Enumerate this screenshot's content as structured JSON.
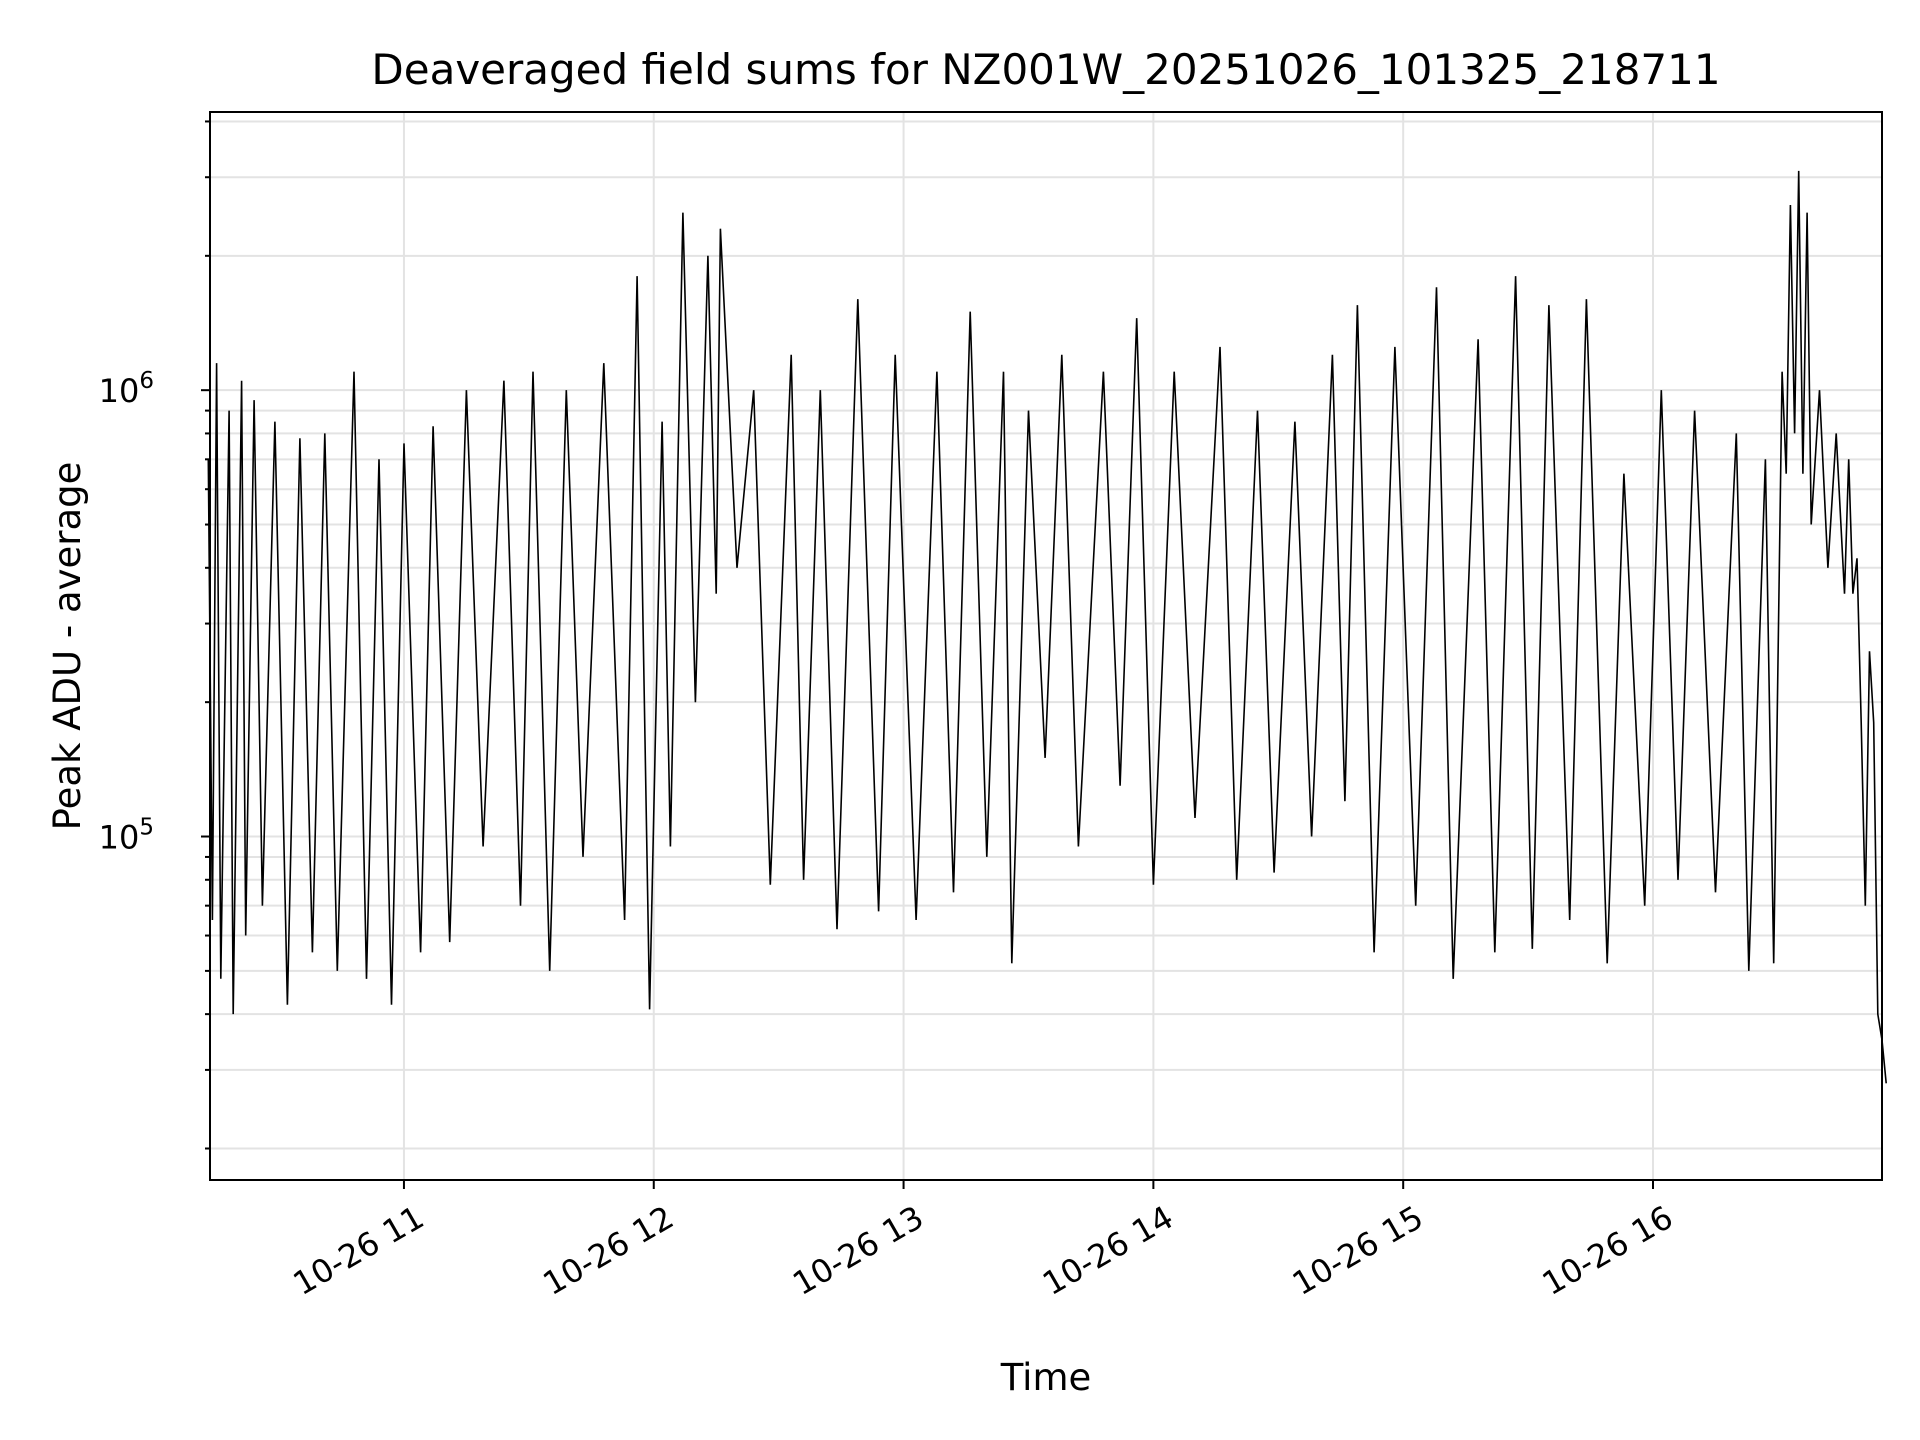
{
  "chart_data": {
    "type": "line",
    "title": "Deaveraged field sums for NZ001W_20251026_101325_218711",
    "xlabel": "Time",
    "ylabel": "Peak ADU - average",
    "y_scale": "log",
    "x_range": [
      "2025-10-26 10:13:25",
      "2025-10-26 16:55:00"
    ],
    "ylim": [
      17000,
      4200000
    ],
    "grid": true,
    "line_color": "#000000",
    "grid_color": "#e3e3e3",
    "x_ticks": [
      {
        "value": "2025-10-26 11:00",
        "label": "10-26 11"
      },
      {
        "value": "2025-10-26 12:00",
        "label": "10-26 12"
      },
      {
        "value": "2025-10-26 13:00",
        "label": "10-26 13"
      },
      {
        "value": "2025-10-26 14:00",
        "label": "10-26 14"
      },
      {
        "value": "2025-10-26 15:00",
        "label": "10-26 15"
      },
      {
        "value": "2025-10-26 16:00",
        "label": "10-26 16"
      }
    ],
    "y_ticks": [
      {
        "value": 100000,
        "base": "10",
        "exp": "5"
      },
      {
        "value": 1000000,
        "base": "10",
        "exp": "6"
      }
    ],
    "series": [
      {
        "points": [
          [
            "2025-10-26 10:13",
            700000
          ],
          [
            "2025-10-26 10:14",
            65000
          ],
          [
            "2025-10-26 10:15",
            1150000
          ],
          [
            "2025-10-26 10:16",
            48000
          ],
          [
            "2025-10-26 10:18",
            900000
          ],
          [
            "2025-10-26 10:19",
            40000
          ],
          [
            "2025-10-26 10:21",
            1050000
          ],
          [
            "2025-10-26 10:22",
            60000
          ],
          [
            "2025-10-26 10:24",
            950000
          ],
          [
            "2025-10-26 10:26",
            70000
          ],
          [
            "2025-10-26 10:29",
            850000
          ],
          [
            "2025-10-26 10:32",
            42000
          ],
          [
            "2025-10-26 10:35",
            780000
          ],
          [
            "2025-10-26 10:38",
            55000
          ],
          [
            "2025-10-26 10:41",
            800000
          ],
          [
            "2025-10-26 10:44",
            50000
          ],
          [
            "2025-10-26 10:48",
            1100000
          ],
          [
            "2025-10-26 10:51",
            48000
          ],
          [
            "2025-10-26 10:54",
            700000
          ],
          [
            "2025-10-26 10:57",
            42000
          ],
          [
            "2025-10-26 11:00",
            760000
          ],
          [
            "2025-10-26 11:04",
            55000
          ],
          [
            "2025-10-26 11:07",
            830000
          ],
          [
            "2025-10-26 11:11",
            58000
          ],
          [
            "2025-10-26 11:15",
            1000000
          ],
          [
            "2025-10-26 11:19",
            95000
          ],
          [
            "2025-10-26 11:24",
            1050000
          ],
          [
            "2025-10-26 11:28",
            70000
          ],
          [
            "2025-10-26 11:31",
            1100000
          ],
          [
            "2025-10-26 11:35",
            50000
          ],
          [
            "2025-10-26 11:39",
            1000000
          ],
          [
            "2025-10-26 11:43",
            90000
          ],
          [
            "2025-10-26 11:48",
            1150000
          ],
          [
            "2025-10-26 11:53",
            65000
          ],
          [
            "2025-10-26 11:56",
            1800000
          ],
          [
            "2025-10-26 11:59",
            41000
          ],
          [
            "2025-10-26 12:02",
            850000
          ],
          [
            "2025-10-26 12:04",
            95000
          ],
          [
            "2025-10-26 12:07",
            2500000
          ],
          [
            "2025-10-26 12:10",
            200000
          ],
          [
            "2025-10-26 12:13",
            2000000
          ],
          [
            "2025-10-26 12:15",
            350000
          ],
          [
            "2025-10-26 12:16",
            2300000
          ],
          [
            "2025-10-26 12:20",
            400000
          ],
          [
            "2025-10-26 12:24",
            1000000
          ],
          [
            "2025-10-26 12:28",
            78000
          ],
          [
            "2025-10-26 12:33",
            1200000
          ],
          [
            "2025-10-26 12:36",
            80000
          ],
          [
            "2025-10-26 12:40",
            1000000
          ],
          [
            "2025-10-26 12:44",
            62000
          ],
          [
            "2025-10-26 12:49",
            1600000
          ],
          [
            "2025-10-26 12:54",
            68000
          ],
          [
            "2025-10-26 12:58",
            1200000
          ],
          [
            "2025-10-26 13:03",
            65000
          ],
          [
            "2025-10-26 13:08",
            1100000
          ],
          [
            "2025-10-26 13:12",
            75000
          ],
          [
            "2025-10-26 13:16",
            1500000
          ],
          [
            "2025-10-26 13:20",
            90000
          ],
          [
            "2025-10-26 13:24",
            1100000
          ],
          [
            "2025-10-26 13:26",
            52000
          ],
          [
            "2025-10-26 13:30",
            900000
          ],
          [
            "2025-10-26 13:34",
            150000
          ],
          [
            "2025-10-26 13:38",
            1200000
          ],
          [
            "2025-10-26 13:42",
            95000
          ],
          [
            "2025-10-26 13:48",
            1100000
          ],
          [
            "2025-10-26 13:52",
            130000
          ],
          [
            "2025-10-26 13:56",
            1450000
          ],
          [
            "2025-10-26 14:00",
            78000
          ],
          [
            "2025-10-26 14:05",
            1100000
          ],
          [
            "2025-10-26 14:10",
            110000
          ],
          [
            "2025-10-26 14:16",
            1250000
          ],
          [
            "2025-10-26 14:20",
            80000
          ],
          [
            "2025-10-26 14:25",
            900000
          ],
          [
            "2025-10-26 14:29",
            83000
          ],
          [
            "2025-10-26 14:34",
            850000
          ],
          [
            "2025-10-26 14:38",
            100000
          ],
          [
            "2025-10-26 14:43",
            1200000
          ],
          [
            "2025-10-26 14:46",
            120000
          ],
          [
            "2025-10-26 14:49",
            1550000
          ],
          [
            "2025-10-26 14:53",
            55000
          ],
          [
            "2025-10-26 14:58",
            1250000
          ],
          [
            "2025-10-26 15:03",
            70000
          ],
          [
            "2025-10-26 15:08",
            1700000
          ],
          [
            "2025-10-26 15:12",
            48000
          ],
          [
            "2025-10-26 15:18",
            1300000
          ],
          [
            "2025-10-26 15:22",
            55000
          ],
          [
            "2025-10-26 15:27",
            1800000
          ],
          [
            "2025-10-26 15:31",
            56000
          ],
          [
            "2025-10-26 15:35",
            1550000
          ],
          [
            "2025-10-26 15:40",
            65000
          ],
          [
            "2025-10-26 15:44",
            1600000
          ],
          [
            "2025-10-26 15:49",
            52000
          ],
          [
            "2025-10-26 15:53",
            650000
          ],
          [
            "2025-10-26 15:58",
            70000
          ],
          [
            "2025-10-26 16:02",
            1000000
          ],
          [
            "2025-10-26 16:06",
            80000
          ],
          [
            "2025-10-26 16:10",
            900000
          ],
          [
            "2025-10-26 16:15",
            75000
          ],
          [
            "2025-10-26 16:20",
            800000
          ],
          [
            "2025-10-26 16:23",
            50000
          ],
          [
            "2025-10-26 16:27",
            700000
          ],
          [
            "2025-10-26 16:29",
            52000
          ],
          [
            "2025-10-26 16:31",
            1100000
          ],
          [
            "2025-10-26 16:32",
            650000
          ],
          [
            "2025-10-26 16:33",
            2600000
          ],
          [
            "2025-10-26 16:34",
            800000
          ],
          [
            "2025-10-26 16:35",
            3100000
          ],
          [
            "2025-10-26 16:36",
            650000
          ],
          [
            "2025-10-26 16:37",
            2500000
          ],
          [
            "2025-10-26 16:38",
            500000
          ],
          [
            "2025-10-26 16:40",
            1000000
          ],
          [
            "2025-10-26 16:42",
            400000
          ],
          [
            "2025-10-26 16:44",
            800000
          ],
          [
            "2025-10-26 16:46",
            350000
          ],
          [
            "2025-10-26 16:47",
            700000
          ],
          [
            "2025-10-26 16:48",
            350000
          ],
          [
            "2025-10-26 16:49",
            420000
          ],
          [
            "2025-10-26 16:50",
            180000
          ],
          [
            "2025-10-26 16:51",
            70000
          ],
          [
            "2025-10-26 16:52",
            260000
          ],
          [
            "2025-10-26 16:53",
            180000
          ],
          [
            "2025-10-26 16:54",
            40000
          ],
          [
            "2025-10-26 16:55",
            35000
          ],
          [
            "2025-10-26 16:56",
            28000
          ]
        ]
      }
    ]
  }
}
